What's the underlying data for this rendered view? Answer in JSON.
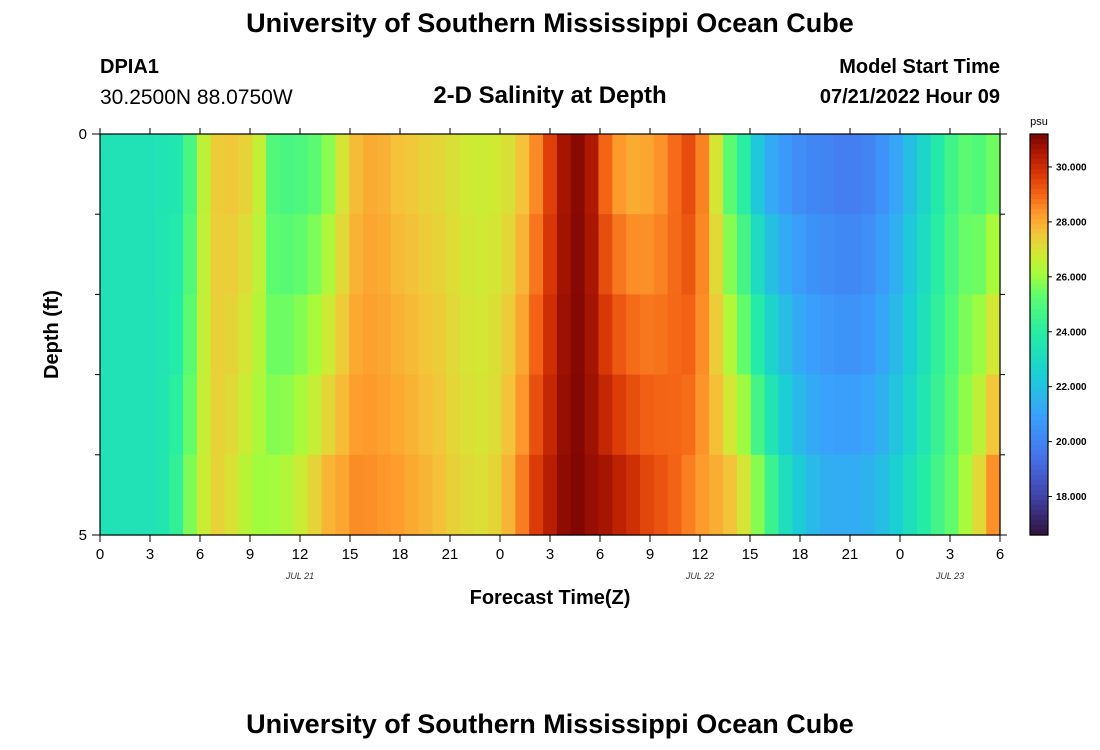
{
  "header": {
    "title": "University of Southern Mississippi Ocean Cube",
    "station_id": "DPIA1",
    "coordinates": "30.2500N  88.0750W",
    "subtitle": "2-D Salinity at Depth",
    "model_start_label": "Model Start Time",
    "model_start_value": "07/21/2022 Hour 09"
  },
  "footer": {
    "title": "University of Southern Mississippi Ocean Cube"
  },
  "chart_data": {
    "type": "heatmap",
    "title": "2-D Salinity at Depth",
    "xlabel": "Forecast Time(Z)",
    "ylabel": "Depth (ft)",
    "x_tick_labels": [
      "0",
      "3",
      "6",
      "9",
      "12",
      "15",
      "18",
      "21",
      "0",
      "3",
      "6",
      "9",
      "12",
      "15",
      "18",
      "21",
      "0",
      "3",
      "6"
    ],
    "x_date_labels": [
      {
        "label": "JUL 21",
        "hour": 12
      },
      {
        "label": "JUL 22",
        "hour": 36
      },
      {
        "label": "JUL 23",
        "hour": 51
      }
    ],
    "x_range": [
      0,
      54
    ],
    "y_range": [
      0,
      5
    ],
    "y_tick_labels": [
      "0",
      "5"
    ],
    "y_minor_ticks": [
      1,
      2,
      3,
      4
    ],
    "depth_levels": [
      0,
      1,
      2,
      3,
      4,
      5
    ],
    "colorbar": {
      "unit": "psu",
      "range": [
        16.6,
        31.2
      ],
      "tick_values": [
        18,
        20,
        22,
        24,
        26,
        28,
        30
      ],
      "tick_labels": [
        "18.000",
        "20.000",
        "22.000",
        "24.000",
        "26.000",
        "28.000",
        "30.000"
      ],
      "colormap": "turbo"
    },
    "salinity_hourly_surface": [
      23.4,
      23.4,
      23.4,
      23.4,
      23.5,
      23.6,
      24.8,
      26.5,
      27.4,
      27.5,
      27.3,
      26.6,
      25.0,
      24.8,
      24.9,
      25.2,
      25.8,
      26.9,
      27.7,
      28.0,
      27.9,
      27.6,
      27.5,
      27.3,
      27.2,
      27.0,
      26.8,
      26.7,
      26.8,
      27.0,
      27.6,
      28.5,
      29.6,
      30.6,
      31.0,
      30.5,
      29.0,
      28.3,
      28.0,
      28.1,
      28.4,
      28.9,
      29.4,
      28.6,
      26.9,
      25.2,
      24.0,
      22.2,
      21.2,
      20.7,
      20.3,
      20.1,
      20.0,
      19.8,
      19.8,
      20.0,
      20.5,
      21.1,
      21.9,
      22.8,
      23.8,
      24.6,
      25.2,
      25.0,
      25.5
    ],
    "salinity_hourly_bottom": [
      23.4,
      23.4,
      23.4,
      23.4,
      23.6,
      24.2,
      25.6,
      26.7,
      27.3,
      27.0,
      26.5,
      26.1,
      26.0,
      26.2,
      26.6,
      27.1,
      27.7,
      28.0,
      28.4,
      28.4,
      28.3,
      28.2,
      28.0,
      27.8,
      27.6,
      27.3,
      27.1,
      27.0,
      27.2,
      27.8,
      28.6,
      29.6,
      30.3,
      30.9,
      31.1,
      30.8,
      30.5,
      30.1,
      29.8,
      29.4,
      29.2,
      29.0,
      28.7,
      28.3,
      27.9,
      27.4,
      26.7,
      25.5,
      24.2,
      23.0,
      22.2,
      21.6,
      21.3,
      21.2,
      21.2,
      21.4,
      21.8,
      22.4,
      23.1,
      23.8,
      24.6,
      25.3,
      26.1,
      27.0,
      28.2
    ],
    "deep_layer_start": 4
  }
}
